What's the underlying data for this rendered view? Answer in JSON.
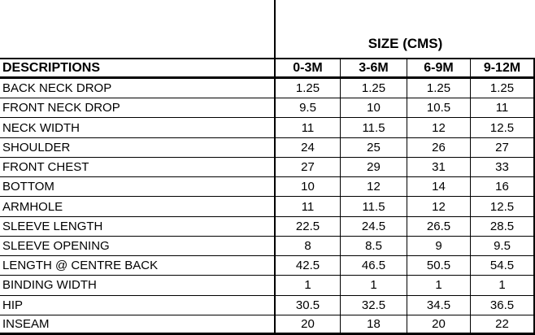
{
  "table": {
    "size_group_title": "SIZE (CMS)",
    "descriptions_header": "DESCRIPTIONS",
    "size_headers": [
      "0-3M",
      "3-6M",
      "6-9M",
      "9-12M"
    ],
    "rows": [
      {
        "label": "BACK NECK DROP",
        "values": [
          "1.25",
          "1.25",
          "1.25",
          "1.25"
        ]
      },
      {
        "label": "FRONT NECK DROP",
        "values": [
          "9.5",
          "10",
          "10.5",
          "11"
        ]
      },
      {
        "label": "NECK WIDTH",
        "values": [
          "11",
          "11.5",
          "12",
          "12.5"
        ]
      },
      {
        "label": "SHOULDER",
        "values": [
          "24",
          "25",
          "26",
          "27"
        ]
      },
      {
        "label": "FRONT CHEST",
        "values": [
          "27",
          "29",
          "31",
          "33"
        ]
      },
      {
        "label": "BOTTOM",
        "values": [
          "10",
          "12",
          "14",
          "16"
        ]
      },
      {
        "label": "ARMHOLE",
        "values": [
          "11",
          "11.5",
          "12",
          "12.5"
        ]
      },
      {
        "label": "SLEEVE LENGTH",
        "values": [
          "22.5",
          "24.5",
          "26.5",
          "28.5"
        ]
      },
      {
        "label": "SLEEVE OPENING",
        "values": [
          "8",
          "8.5",
          "9",
          "9.5"
        ]
      },
      {
        "label": "LENGTH @ CENTRE BACK",
        "values": [
          "42.5",
          "46.5",
          "50.5",
          "54.5"
        ]
      },
      {
        "label": "BINDING WIDTH",
        "values": [
          "1",
          "1",
          "1",
          "1"
        ]
      },
      {
        "label": "HIP",
        "values": [
          "30.5",
          "32.5",
          "34.5",
          "36.5"
        ]
      },
      {
        "label": "INSEAM",
        "values": [
          "20",
          "18",
          "20",
          "22"
        ]
      }
    ]
  },
  "colors": {
    "background": "#ffffff",
    "text": "#000000",
    "border": "#000000"
  }
}
